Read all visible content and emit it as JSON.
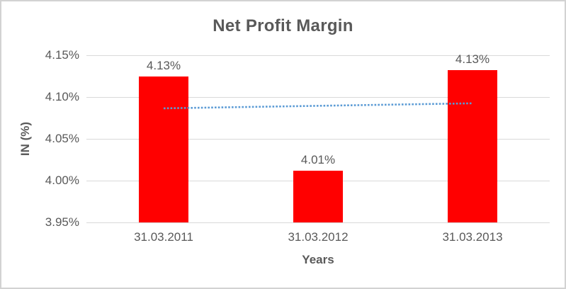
{
  "chart_data": {
    "type": "bar",
    "title": "Net Profit Margin",
    "xlabel": "Years",
    "ylabel": "IN (%)",
    "categories": [
      "31.03.2011",
      "31.03.2012",
      "31.03.2013"
    ],
    "values": [
      4.125,
      4.012,
      4.132
    ],
    "data_labels": [
      "4.13%",
      "4.01%",
      "4.13%"
    ],
    "ylim": [
      3.95,
      4.15
    ],
    "yticks": [
      3.95,
      4.0,
      4.05,
      4.1,
      4.15
    ],
    "ytick_labels": [
      "3.95%",
      "4.00%",
      "4.05%",
      "4.10%",
      "4.15%"
    ],
    "grid": true,
    "legend": "none",
    "bar_color": "#FF0000",
    "gridline_color": "#D9D9D9",
    "axis_line_color": "#D9D9D9",
    "text_color": "#595959",
    "frame_border_color": "#D2D2D2",
    "trendline": {
      "type": "linear",
      "style": "dotted",
      "color": "#5B9BD5",
      "start_value": 4.0865,
      "end_value": 4.0925
    }
  }
}
